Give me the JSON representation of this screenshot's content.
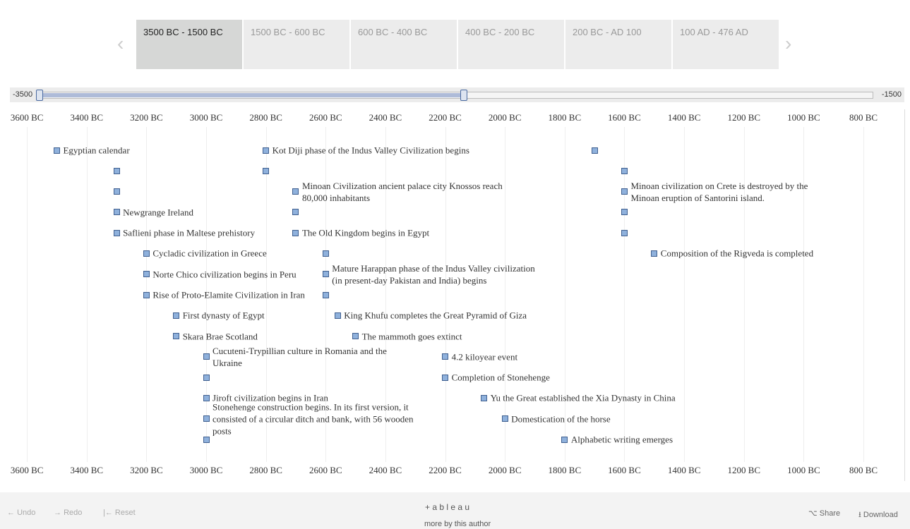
{
  "tabs": [
    "3500 BC - 1500 BC",
    "1500 BC - 600 BC",
    "600 BC - 400 BC",
    "400 BC - 200 BC",
    "200 BC - AD 100",
    "100 AD - 476 AD"
  ],
  "slider": {
    "min_label": "-3500",
    "max_label": "-1500"
  },
  "chart_data": {
    "type": "timeline",
    "xlim": [
      -3657,
      -663
    ],
    "xticks": [
      {
        "value": -3600,
        "label": "3600 BC"
      },
      {
        "value": -3400,
        "label": "3400 BC"
      },
      {
        "value": -3200,
        "label": "3200 BC"
      },
      {
        "value": -3000,
        "label": "3000 BC"
      },
      {
        "value": -2800,
        "label": "2800 BC"
      },
      {
        "value": -2600,
        "label": "2600 BC"
      },
      {
        "value": -2400,
        "label": "2400 BC"
      },
      {
        "value": -2200,
        "label": "2200 BC"
      },
      {
        "value": -2000,
        "label": "2000 BC"
      },
      {
        "value": -1800,
        "label": "1800 BC"
      },
      {
        "value": -1600,
        "label": "1600 BC"
      },
      {
        "value": -1400,
        "label": "1400 BC"
      },
      {
        "value": -1200,
        "label": "1200 BC"
      },
      {
        "value": -1000,
        "label": "1000 BC"
      },
      {
        "value": -800,
        "label": "800 BC"
      }
    ],
    "grid": true,
    "color": "#8fb1dc",
    "rows": [
      [
        {
          "year": -3500,
          "label": "Egyptian calendar"
        },
        {
          "year": -2800,
          "label": "Kot Diji phase of the Indus Valley Civilization begins"
        },
        {
          "year": -1700
        }
      ],
      [
        {
          "year": -3300
        },
        {
          "year": -2800
        },
        {
          "year": -1600
        }
      ],
      [
        {
          "year": -3300
        },
        {
          "year": -2700,
          "label": "Minoan Civilization ancient palace city Knossos reach 80,000 inhabitants"
        },
        {
          "year": -1600,
          "label": "Minoan civilization on Crete is destroyed by the Minoan eruption of Santorini island."
        }
      ],
      [
        {
          "year": -3300,
          "label": "Newgrange Ireland"
        },
        {
          "year": -2700
        },
        {
          "year": -1600
        }
      ],
      [
        {
          "year": -3300,
          "label": "Saflieni phase in Maltese prehistory"
        },
        {
          "year": -2700,
          "label": "The Old Kingdom begins in Egypt"
        },
        {
          "year": -1600
        }
      ],
      [
        {
          "year": -3200,
          "label": "Cycladic civilization in Greece"
        },
        {
          "year": -2600
        },
        {
          "year": -1500,
          "label": "Composition of the Rigveda is completed"
        }
      ],
      [
        {
          "year": -3200,
          "label": "Norte Chico civilization begins in Peru"
        },
        {
          "year": -2600,
          "label": "Mature Harappan phase of the Indus Valley civilization (in present-day Pakistan and India) begins"
        }
      ],
      [
        {
          "year": -3200,
          "label": "Rise of Proto-Elamite Civilization in Iran"
        },
        {
          "year": -2600
        }
      ],
      [
        {
          "year": -3100,
          "label": "First dynasty of Egypt"
        },
        {
          "year": -2560,
          "label": "King Khufu completes the Great Pyramid of Giza"
        }
      ],
      [
        {
          "year": -3100,
          "label": "Skara Brae Scotland"
        },
        {
          "year": -2500,
          "label": "The mammoth goes extinct"
        }
      ],
      [
        {
          "year": -3000,
          "label": "Cucuteni-Trypillian culture in Romania and the Ukraine"
        },
        {
          "year": -2200,
          "label": "4.2 kiloyear event"
        }
      ],
      [
        {
          "year": -3000
        },
        {
          "year": -2200,
          "label": "Completion of Stonehenge"
        }
      ],
      [
        {
          "year": -3000,
          "label": "Jiroft civilization begins in Iran"
        },
        {
          "year": -2070,
          "label": "Yu the Great established the Xia Dynasty in China"
        }
      ],
      [
        {
          "year": -3000,
          "label": "Stonehenge construction begins. In its first version, it consisted of a circular ditch and bank, with 56 wooden posts"
        },
        {
          "year": -2000,
          "label": "Domestication of the horse"
        }
      ],
      [
        {
          "year": -3000
        },
        {
          "year": -1800,
          "label": "Alphabetic writing emerges"
        }
      ]
    ]
  },
  "toolbar": {
    "undo": "Undo",
    "redo": "Redo",
    "reset": "Reset",
    "logo": "+ a b l e a u",
    "author": "more by this author",
    "share": "Share",
    "download": "Download"
  }
}
